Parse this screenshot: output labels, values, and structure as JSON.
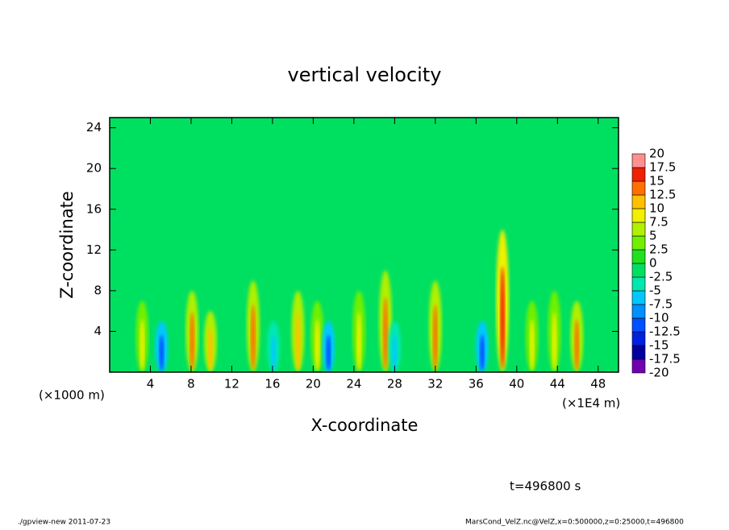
{
  "chart_data": {
    "type": "heatmap",
    "title": "vertical velocity",
    "x_label": "X-coordinate",
    "y_label": "Z-coordinate",
    "x_unit_left": "(×1000 m)",
    "x_unit_right": "(×1E4 m)",
    "time_label": "t=496800 s",
    "footer_left": "./gpview-new  2011-07-23",
    "footer_right": "MarsCond_VelZ.nc@VelZ,x=0:500000,z=0:25000,t=496800",
    "xlim": [
      0,
      50
    ],
    "ylim": [
      0,
      25
    ],
    "xticks": [
      4,
      8,
      12,
      16,
      20,
      24,
      28,
      32,
      36,
      40,
      44,
      48
    ],
    "yticks": [
      4,
      8,
      12,
      16,
      20,
      24
    ],
    "background_value": 0,
    "features": {
      "x": [
        3.2,
        5.1,
        8.1,
        9.9,
        14.1,
        16.1,
        18.5,
        20.4,
        21.5,
        24.5,
        27.1,
        28.0,
        32.0,
        36.6,
        38.6,
        41.5,
        43.7,
        45.9
      ],
      "z_top": [
        7,
        5,
        8,
        6,
        9,
        5,
        8,
        7,
        5,
        8,
        10,
        5,
        9,
        5,
        14,
        7,
        8,
        7
      ],
      "values": [
        10,
        -10,
        15,
        12.5,
        15,
        -5,
        12.5,
        10,
        -10,
        10,
        15,
        -5,
        15,
        -10,
        17.5,
        10,
        10,
        15
      ]
    },
    "colorbar": {
      "levels": [
        -20,
        -17.5,
        -15,
        -12.5,
        -10,
        -7.5,
        -5,
        -2.5,
        0,
        2.5,
        5,
        7.5,
        10,
        12.5,
        15,
        17.5,
        20
      ],
      "colors": [
        "#7000b0",
        "#0000a0",
        "#0020e0",
        "#0050ff",
        "#0090ff",
        "#00c8ff",
        "#00e8b0",
        "#00e060",
        "#20e020",
        "#70f000",
        "#b0f000",
        "#f0f000",
        "#ffc000",
        "#ff7000",
        "#f02000",
        "#ff9090"
      ]
    }
  }
}
